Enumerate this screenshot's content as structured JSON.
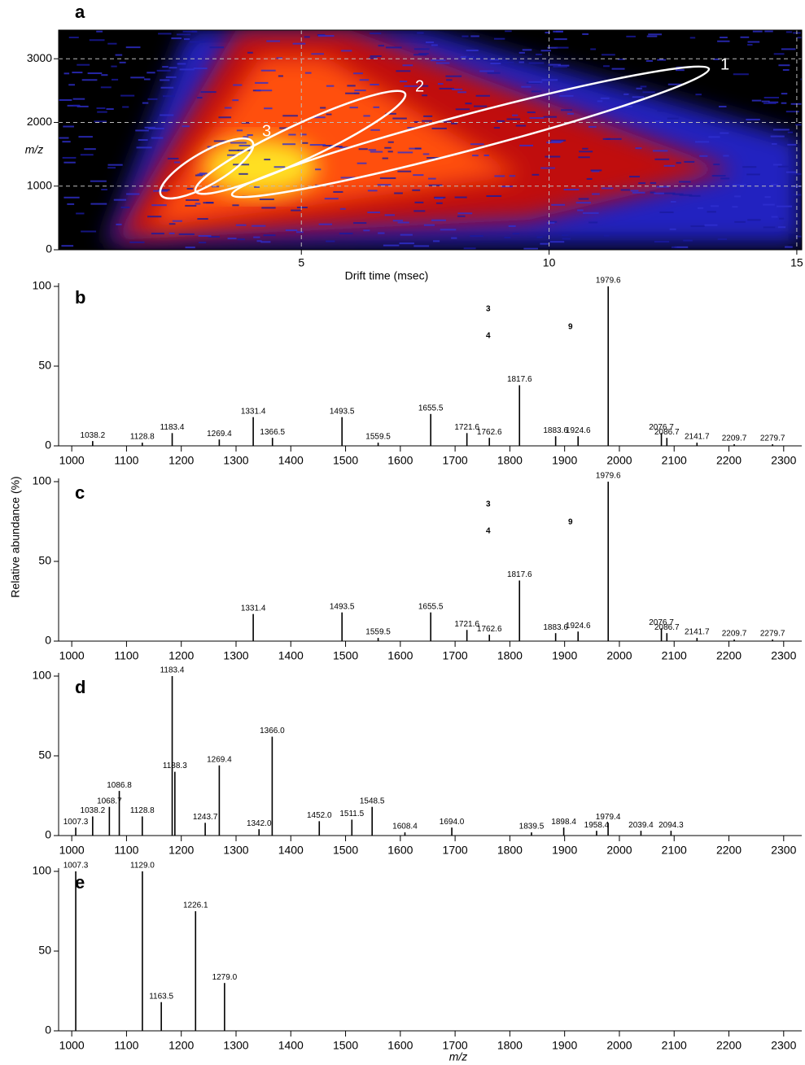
{
  "figure": {
    "ylabel": "Relative abundance (%)"
  },
  "chart_data": [
    {
      "type": "heatmap",
      "panel": "a",
      "xlabel": "Drift time (msec)",
      "ylabel": "m/z",
      "xlim": [
        0.1,
        15.1
      ],
      "ylim": [
        0,
        3450
      ],
      "xticks": [
        5,
        10,
        15
      ],
      "yticks": [
        0,
        1000,
        2000,
        3000
      ],
      "grid": true,
      "regions": [
        "1",
        "2",
        "3"
      ]
    },
    {
      "type": "stem",
      "panel": "b",
      "color": "#000000",
      "x": [
        1038.2,
        1128.8,
        1183.4,
        1269.4,
        1331.4,
        1366.5,
        1493.5,
        1559.5,
        1655.5,
        1721.6,
        1762.6,
        1817.6,
        1883.6,
        1924.6,
        1979.6,
        2076.7,
        2086.7,
        2141.7,
        2209.7,
        2279.7
      ],
      "peak_labels": [
        "1038.2",
        "1128.8",
        "1183.4",
        "1269.4",
        "1331.4",
        "1366.5",
        "1493.5",
        "1559.5",
        "1655.5",
        "1721.6",
        "1762.6",
        "1817.6",
        "1883.6",
        "1924.6",
        "1979.6",
        "2076.7",
        "2086.7",
        "2141.7",
        "2209.7",
        "2279.7"
      ],
      "values": [
        3,
        2,
        8,
        4,
        18,
        5,
        18,
        2,
        20,
        8,
        5,
        38,
        6,
        6,
        100,
        8,
        5,
        2,
        1,
        1
      ],
      "annotations": [
        "3",
        "4",
        "9"
      ],
      "xlim": [
        976,
        2333
      ],
      "ylim": [
        0,
        100
      ],
      "xticks": [
        1000,
        1100,
        1200,
        1300,
        1400,
        1500,
        1600,
        1700,
        1800,
        1900,
        2000,
        2100,
        2200,
        2300
      ],
      "yticks": [
        0,
        50,
        100
      ]
    },
    {
      "type": "stem",
      "panel": "c",
      "color": "#000000",
      "x": [
        1331.4,
        1493.5,
        1559.5,
        1655.5,
        1721.6,
        1762.6,
        1817.6,
        1883.6,
        1924.6,
        1979.6,
        2076.7,
        2086.7,
        2141.7,
        2209.7,
        2279.7
      ],
      "peak_labels": [
        "1331.4",
        "1493.5",
        "1559.5",
        "1655.5",
        "1721.6",
        "1762.6",
        "1817.6",
        "1883.6",
        "1924.6",
        "1979.6",
        "2076.7",
        "2086.7",
        "2141.7",
        "2209.7",
        "2279.7"
      ],
      "values": [
        17,
        18,
        2,
        18,
        7,
        4,
        38,
        5,
        6,
        100,
        8,
        5,
        2,
        1,
        1
      ],
      "annotations": [
        "3",
        "4",
        "9"
      ],
      "xlim": [
        976,
        2333
      ],
      "ylim": [
        0,
        100
      ],
      "xticks": [
        1000,
        1100,
        1200,
        1300,
        1400,
        1500,
        1600,
        1700,
        1800,
        1900,
        2000,
        2100,
        2200,
        2300
      ],
      "yticks": [
        0,
        50,
        100
      ]
    },
    {
      "type": "stem",
      "panel": "d",
      "color": "#000000",
      "x": [
        1007.3,
        1038.2,
        1068.7,
        1086.8,
        1128.8,
        1183.4,
        1188.3,
        1243.7,
        1269.4,
        1342.0,
        1366.0,
        1452.0,
        1511.5,
        1548.5,
        1608.4,
        1694.0,
        1839.5,
        1898.4,
        1958.4,
        1979.4,
        2039.4,
        2094.3
      ],
      "peak_labels": [
        "1007.3",
        "1038.2",
        "1068.7",
        "1086.8",
        "1128.8",
        "1183.4",
        "1188.3",
        "1243.7",
        "1269.4",
        "1342.0",
        "1366.0",
        "1452.0",
        "1511.5",
        "1548.5",
        "1608.4",
        "1694.0",
        "1839.5",
        "1898.4",
        "1958.4",
        "1979.4",
        "2039.4",
        "2094.3"
      ],
      "values": [
        5,
        12,
        18,
        28,
        12,
        100,
        40,
        8,
        44,
        4,
        62,
        9,
        10,
        18,
        2,
        5,
        2,
        5,
        3,
        8,
        3,
        3
      ],
      "xlim": [
        976,
        2333
      ],
      "ylim": [
        0,
        100
      ],
      "xticks": [
        1000,
        1100,
        1200,
        1300,
        1400,
        1500,
        1600,
        1700,
        1800,
        1900,
        2000,
        2100,
        2200,
        2300
      ],
      "yticks": [
        0,
        50,
        100
      ]
    },
    {
      "type": "stem",
      "panel": "e",
      "color": "#000000",
      "xlabel": "m/z",
      "x": [
        1007.3,
        1129.0,
        1163.5,
        1226.1,
        1279.0
      ],
      "peak_labels": [
        "1007.3",
        "1129.0",
        "1163.5",
        "1226.1",
        "1279.0"
      ],
      "values": [
        100,
        100,
        18,
        75,
        30
      ],
      "xlim": [
        976,
        2333
      ],
      "ylim": [
        0,
        100
      ],
      "xticks": [
        1000,
        1100,
        1200,
        1300,
        1400,
        1500,
        1600,
        1700,
        1800,
        1900,
        2000,
        2100,
        2200,
        2300
      ],
      "yticks": [
        0,
        50,
        100
      ]
    }
  ]
}
